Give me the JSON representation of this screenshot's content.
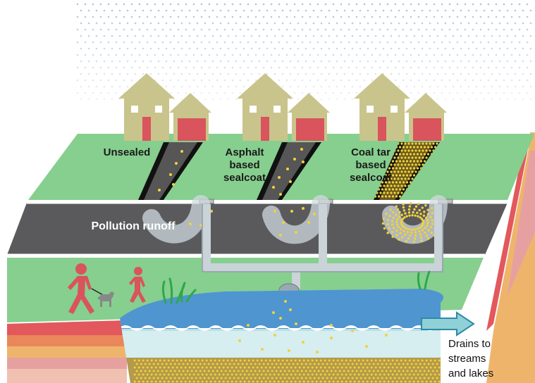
{
  "labels": {
    "unsealed": "Unsealed",
    "asphalt": "Asphalt\nbased\nsealcoat",
    "coal_tar": "Coal tar\nbased\nsealcoat",
    "pollution_runoff": "Pollution runoff",
    "drains": "Drains to\nstreams\nand lakes"
  },
  "colors": {
    "grass": "#86cf8e",
    "road": "#5a5a5c",
    "house_wall": "#c9c48b",
    "house_red": "#d9545c",
    "pond_water": "#4f95cf",
    "sediment": "#b49a4c",
    "pollutant_particles": "#f2d23a",
    "soil_layers": [
      "#e2585c",
      "#e9875a",
      "#efb46c",
      "#e7a0a0"
    ]
  },
  "icons": [
    "house-icon",
    "garage-icon",
    "storm-drain-icon",
    "pipe-icon",
    "person-walking-dog-icon",
    "child-icon",
    "dog-icon",
    "reed-icon",
    "arrow-right-icon",
    "rain-icon"
  ]
}
